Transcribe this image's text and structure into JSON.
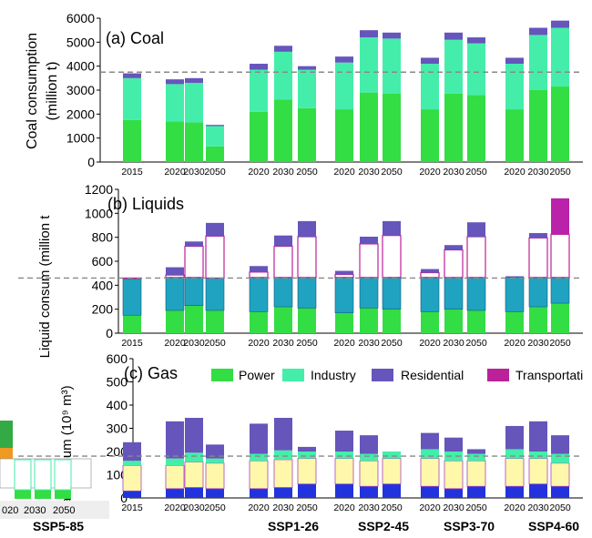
{
  "colors": {
    "power": "#33dd44",
    "industry": "#44eeaa",
    "residential": "#6655bb",
    "transportation": "#bb2299",
    "liquid_industry": "#1fa3c0",
    "gas_power": "#2233dd",
    "gas_industry": "#fff8aa",
    "gas_residential": "#333333"
  },
  "legend": [
    "Power",
    "Industry",
    "Residential",
    "Transportati"
  ],
  "scenarios": [
    "SSP5-85",
    "SSP1-26",
    "SSP2-45",
    "SSP3-70",
    "SSP4-60"
  ],
  "chart_data": [
    {
      "type": "bar",
      "title": "(a) Coal",
      "ylabel": "Coal consumption (million t)",
      "ylim": [
        0,
        6000
      ],
      "yticks": [
        0,
        1000,
        2000,
        3000,
        4000,
        5000,
        6000
      ],
      "reference_line": 3750,
      "categories": [
        "2015",
        "2020",
        "2030",
        "2050",
        "2020",
        "2030",
        "2050",
        "2020",
        "2030",
        "2050",
        "2020",
        "2030",
        "2050",
        "2020",
        "2030",
        "2050"
      ],
      "series": [
        {
          "name": "Power",
          "values": [
            1750,
            1700,
            1650,
            650,
            2100,
            2600,
            2250,
            2200,
            2900,
            2850,
            2200,
            2850,
            2800,
            2200,
            3000,
            3150
          ]
        },
        {
          "name": "Industry",
          "values": [
            1750,
            1550,
            1650,
            850,
            1750,
            2000,
            1600,
            1950,
            2300,
            2300,
            1900,
            2250,
            2150,
            1900,
            2300,
            2450
          ]
        },
        {
          "name": "Residential",
          "values": [
            200,
            200,
            200,
            50,
            250,
            250,
            150,
            250,
            300,
            250,
            250,
            300,
            250,
            250,
            300,
            300
          ]
        }
      ]
    },
    {
      "type": "bar",
      "title": "(b) Liquids",
      "ylabel": "Liquid consum (million t",
      "ylim": [
        0,
        1200
      ],
      "yticks": [
        0,
        200,
        400,
        600,
        800,
        1000,
        1200
      ],
      "reference_line": 460,
      "categories": [
        "2015",
        "2020",
        "2030",
        "2050",
        "2020",
        "2030",
        "2050",
        "2020",
        "2030",
        "2050",
        "2020",
        "2030",
        "2050",
        "2020",
        "2030",
        "2050"
      ],
      "stacks": [
        [
          150,
          305,
          5,
          0
        ],
        [
          190,
          275,
          20,
          65
        ],
        [
          230,
          235,
          260,
          40
        ],
        [
          190,
          270,
          350,
          110
        ],
        [
          180,
          285,
          45,
          50
        ],
        [
          220,
          245,
          260,
          90
        ],
        [
          210,
          255,
          340,
          130
        ],
        [
          170,
          295,
          25,
          30
        ],
        [
          210,
          255,
          280,
          60
        ],
        [
          200,
          265,
          350,
          120
        ],
        [
          180,
          285,
          40,
          30
        ],
        [
          200,
          265,
          230,
          40
        ],
        [
          190,
          275,
          340,
          120
        ],
        [
          180,
          285,
          0,
          10
        ],
        [
          220,
          245,
          330,
          40
        ],
        [
          250,
          215,
          360,
          300
        ]
      ]
    },
    {
      "type": "bar",
      "title": "(c) Gas",
      "ylabel": "Gas consum (10⁹ m³)",
      "ylim": [
        0,
        600
      ],
      "yticks": [
        0,
        100,
        200,
        300,
        400,
        500,
        600
      ],
      "reference_line": 180,
      "categories": [
        "2015",
        "2020",
        "2030",
        "2050",
        "2020",
        "2030",
        "2050",
        "2020",
        "2030",
        "2050",
        "2020",
        "2030",
        "2050",
        "2020",
        "2030",
        "2050"
      ],
      "stacks": [
        [
          30,
          110,
          20,
          80
        ],
        [
          40,
          100,
          30,
          160
        ],
        [
          45,
          110,
          40,
          150
        ],
        [
          40,
          110,
          20,
          60
        ],
        [
          40,
          120,
          30,
          130
        ],
        [
          45,
          120,
          40,
          140
        ],
        [
          60,
          110,
          30,
          20
        ],
        [
          60,
          110,
          30,
          90
        ],
        [
          50,
          110,
          30,
          80
        ],
        [
          60,
          110,
          30,
          0
        ],
        [
          50,
          120,
          40,
          70
        ],
        [
          40,
          120,
          40,
          60
        ],
        [
          50,
          110,
          30,
          20
        ],
        [
          50,
          120,
          40,
          100
        ],
        [
          60,
          110,
          30,
          130
        ],
        [
          50,
          100,
          40,
          80
        ]
      ]
    }
  ],
  "left_stub": {
    "tick_labels": [
      "020",
      "2030",
      "2050"
    ]
  }
}
